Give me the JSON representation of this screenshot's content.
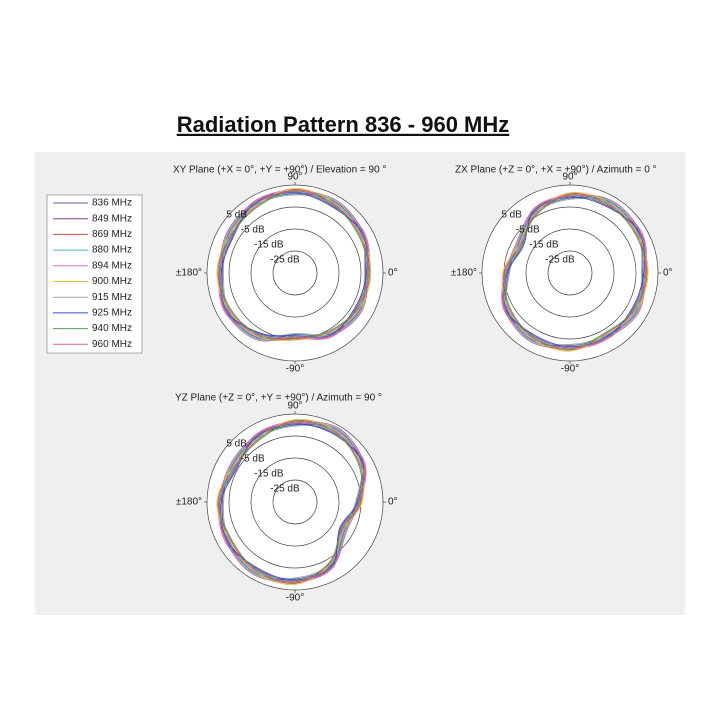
{
  "title": "Radiation Pattern 836 - 960 MHz",
  "chart_data": [
    {
      "type": "polar",
      "title": "XY Plane (+X = 0°, +Y = +90°) / Elevation = 90 °",
      "x": [
        0,
        30,
        60,
        90,
        120,
        150,
        180,
        210,
        240,
        270,
        300,
        330
      ],
      "rlim": [
        -35,
        5
      ],
      "rticks": [
        {
          "value": 5,
          "label": "5 dB"
        },
        {
          "value": -5,
          "label": "-5 dB"
        },
        {
          "value": -15,
          "label": "-15 dB"
        },
        {
          "value": -25,
          "label": "-25 dB"
        }
      ],
      "thetaticks": [
        {
          "value": 90,
          "label": "90°"
        },
        {
          "value": 0,
          "label": "0°"
        },
        {
          "value": -90,
          "label": "-90°"
        },
        {
          "value": 180,
          "label": "±180°"
        }
      ],
      "series": [
        {
          "name": "836 MHz",
          "color": "#55608f",
          "values": [
            -3,
            0,
            2,
            1,
            1,
            0,
            -2,
            0,
            -1,
            -7,
            -3,
            -1
          ]
        },
        {
          "name": "849 MHz",
          "color": "#7d3f8e",
          "values": [
            -2,
            1,
            0,
            2,
            2,
            -2,
            -1,
            1,
            -3,
            -6,
            -2,
            -3
          ]
        },
        {
          "name": "869 MHz",
          "color": "#cf5049",
          "values": [
            -1,
            -1,
            1,
            3,
            0,
            -1,
            0,
            -1,
            -2,
            -5,
            -4,
            -2
          ]
        },
        {
          "name": "880 MHz",
          "color": "#4ab6c0",
          "values": [
            -2.5,
            0.5,
            2.5,
            1.5,
            1.5,
            0.5,
            -1.5,
            0.5,
            -0.5,
            -6.5,
            -2.5,
            -0.5
          ]
        },
        {
          "name": "894 MHz",
          "color": "#d06fc0",
          "values": [
            -1.5,
            1.5,
            0.5,
            2.5,
            2.5,
            -1.5,
            -0.5,
            1.5,
            -2.5,
            -5.5,
            -1.5,
            -2.5
          ]
        },
        {
          "name": "900 MHz",
          "color": "#d2c648",
          "values": [
            -0.5,
            -0.5,
            1.5,
            3.5,
            0.5,
            -0.5,
            0.5,
            -0.5,
            -1.5,
            -4.5,
            -3.5,
            -1.5
          ]
        },
        {
          "name": "915 MHz",
          "color": "#a3a3a3",
          "values": [
            -3.5,
            -0.5,
            1.5,
            0.5,
            0.5,
            -0.5,
            -2.5,
            -0.5,
            -1.5,
            -7.5,
            -3.5,
            -1.5
          ]
        },
        {
          "name": "925 MHz",
          "color": "#3050c0",
          "values": [
            -2.5,
            0.5,
            -0.5,
            1.5,
            1.5,
            -2.5,
            -1.5,
            0.5,
            -3.5,
            -6.5,
            -2.5,
            -3.5
          ]
        },
        {
          "name": "940 MHz",
          "color": "#5a9a5a",
          "values": [
            -1.5,
            -1.5,
            0.5,
            2.5,
            -0.5,
            -1.5,
            -0.5,
            -1.5,
            -2.5,
            -5.5,
            -4.5,
            -2.5
          ]
        },
        {
          "name": "960 MHz",
          "color": "#e06080",
          "values": [
            -2,
            1,
            3,
            2,
            2,
            1,
            -1,
            1,
            0,
            -6,
            -2,
            0
          ]
        }
      ]
    },
    {
      "type": "polar",
      "title": "ZX Plane (+Z = 0°, +X = +90°) / Azimuth = 0 °",
      "x": [
        0,
        30,
        60,
        90,
        120,
        150,
        180,
        210,
        240,
        270,
        300,
        330
      ],
      "rlim": [
        -35,
        5
      ],
      "rticks": [
        {
          "value": 5,
          "label": "5 dB"
        },
        {
          "value": -5,
          "label": "-5 dB"
        },
        {
          "value": -15,
          "label": "-15 dB"
        },
        {
          "value": -25,
          "label": "-25 dB"
        }
      ],
      "thetaticks": [
        {
          "value": 90,
          "label": "90°"
        },
        {
          "value": 0,
          "label": "0°"
        },
        {
          "value": -90,
          "label": "-90°"
        },
        {
          "value": 180,
          "label": "±180°"
        }
      ],
      "series": [
        {
          "values": [
            -2,
            1,
            2,
            -1,
            -3,
            -8,
            -7,
            -2,
            0,
            -2,
            -2,
            0
          ]
        },
        {
          "values": [
            -1,
            2,
            0,
            0,
            -2,
            -10,
            -6,
            -1,
            -2,
            -1,
            -1,
            -2
          ]
        },
        {
          "values": [
            0,
            0,
            1,
            1,
            -4,
            -9,
            -5,
            -3,
            -1,
            0,
            -3,
            -1
          ]
        },
        {
          "values": [
            -1.5,
            1.5,
            2.5,
            -0.5,
            -2.5,
            -7.5,
            -6.5,
            -1.5,
            0.5,
            -1.5,
            -1.5,
            0.5
          ]
        },
        {
          "values": [
            -0.5,
            2.5,
            0.5,
            0.5,
            -1.5,
            -9.5,
            -5.5,
            -0.5,
            -1.5,
            -0.5,
            -0.5,
            -1.5
          ]
        },
        {
          "values": [
            0.5,
            0.5,
            1.5,
            1.5,
            -3.5,
            -8.5,
            -4.5,
            -2.5,
            -0.5,
            0.5,
            -2.5,
            -0.5
          ]
        },
        {
          "values": [
            -2.5,
            0.5,
            1.5,
            -1.5,
            -3.5,
            -8.5,
            -7.5,
            -2.5,
            -0.5,
            -2.5,
            -2.5,
            -0.5
          ]
        },
        {
          "values": [
            -1.5,
            1.5,
            -0.5,
            -0.5,
            -2.5,
            -10.5,
            -6.5,
            -1.5,
            -2.5,
            -1.5,
            -1.5,
            -2.5
          ]
        },
        {
          "values": [
            -0.5,
            -0.5,
            0.5,
            0.5,
            -4.5,
            -9.5,
            -5.5,
            -3.5,
            -1.5,
            -0.5,
            -3.5,
            -1.5
          ]
        },
        {
          "values": [
            -1,
            2,
            3,
            0,
            -2,
            -7,
            -6,
            -1,
            1,
            -1,
            -1,
            1
          ]
        }
      ]
    },
    {
      "type": "polar",
      "title": "YZ Plane (+Z = 0°, +Y = +90°) / Azimuth = 90 °",
      "x": [
        0,
        30,
        60,
        90,
        120,
        150,
        180,
        210,
        240,
        270,
        300,
        330
      ],
      "rlim": [
        -35,
        5
      ],
      "rticks": [
        {
          "value": 5,
          "label": "5 dB"
        },
        {
          "value": -5,
          "label": "-5 dB"
        },
        {
          "value": -15,
          "label": "-15 dB"
        },
        {
          "value": -25,
          "label": "-25 dB"
        }
      ],
      "thetaticks": [
        {
          "value": 90,
          "label": "90°"
        },
        {
          "value": 0,
          "label": "0°"
        },
        {
          "value": -90,
          "label": "-90°"
        },
        {
          "value": 180,
          "label": "±180°"
        }
      ],
      "series": [
        {
          "values": [
            -7,
            0,
            3,
            0,
            -1,
            -2,
            -2,
            0,
            2,
            0,
            -2,
            -9
          ]
        },
        {
          "values": [
            -6,
            1,
            1,
            1,
            0,
            -4,
            -1,
            1,
            0,
            1,
            -1,
            -11
          ]
        },
        {
          "values": [
            -5,
            -1,
            2,
            2,
            -2,
            -3,
            0,
            -1,
            1,
            2,
            -3,
            -10
          ]
        },
        {
          "values": [
            -6.5,
            0.5,
            3.5,
            0.5,
            -0.5,
            -1.5,
            -1.5,
            0.5,
            2.5,
            0.5,
            -1.5,
            -8.5
          ]
        },
        {
          "values": [
            -5.5,
            1.5,
            1.5,
            1.5,
            0.5,
            -3.5,
            -0.5,
            1.5,
            0.5,
            1.5,
            -0.5,
            -10.5
          ]
        },
        {
          "values": [
            -4.5,
            -0.5,
            2.5,
            2.5,
            -1.5,
            -2.5,
            0.5,
            -0.5,
            1.5,
            2.5,
            -2.5,
            -9.5
          ]
        },
        {
          "values": [
            -7.5,
            -0.5,
            2.5,
            -0.5,
            -1.5,
            -2.5,
            -2.5,
            -0.5,
            1.5,
            -0.5,
            -2.5,
            -9.5
          ]
        },
        {
          "values": [
            -6.5,
            0.5,
            0.5,
            0.5,
            -0.5,
            -4.5,
            -1.5,
            0.5,
            -0.5,
            0.5,
            -1.5,
            -11.5
          ]
        },
        {
          "values": [
            -5.5,
            -1.5,
            1.5,
            1.5,
            -2.5,
            -3.5,
            -0.5,
            -1.5,
            0.5,
            1.5,
            -3.5,
            -10.5
          ]
        },
        {
          "values": [
            -6,
            1,
            4,
            1,
            0,
            -1,
            -1,
            1,
            3,
            1,
            -1,
            -8
          ]
        }
      ]
    }
  ]
}
